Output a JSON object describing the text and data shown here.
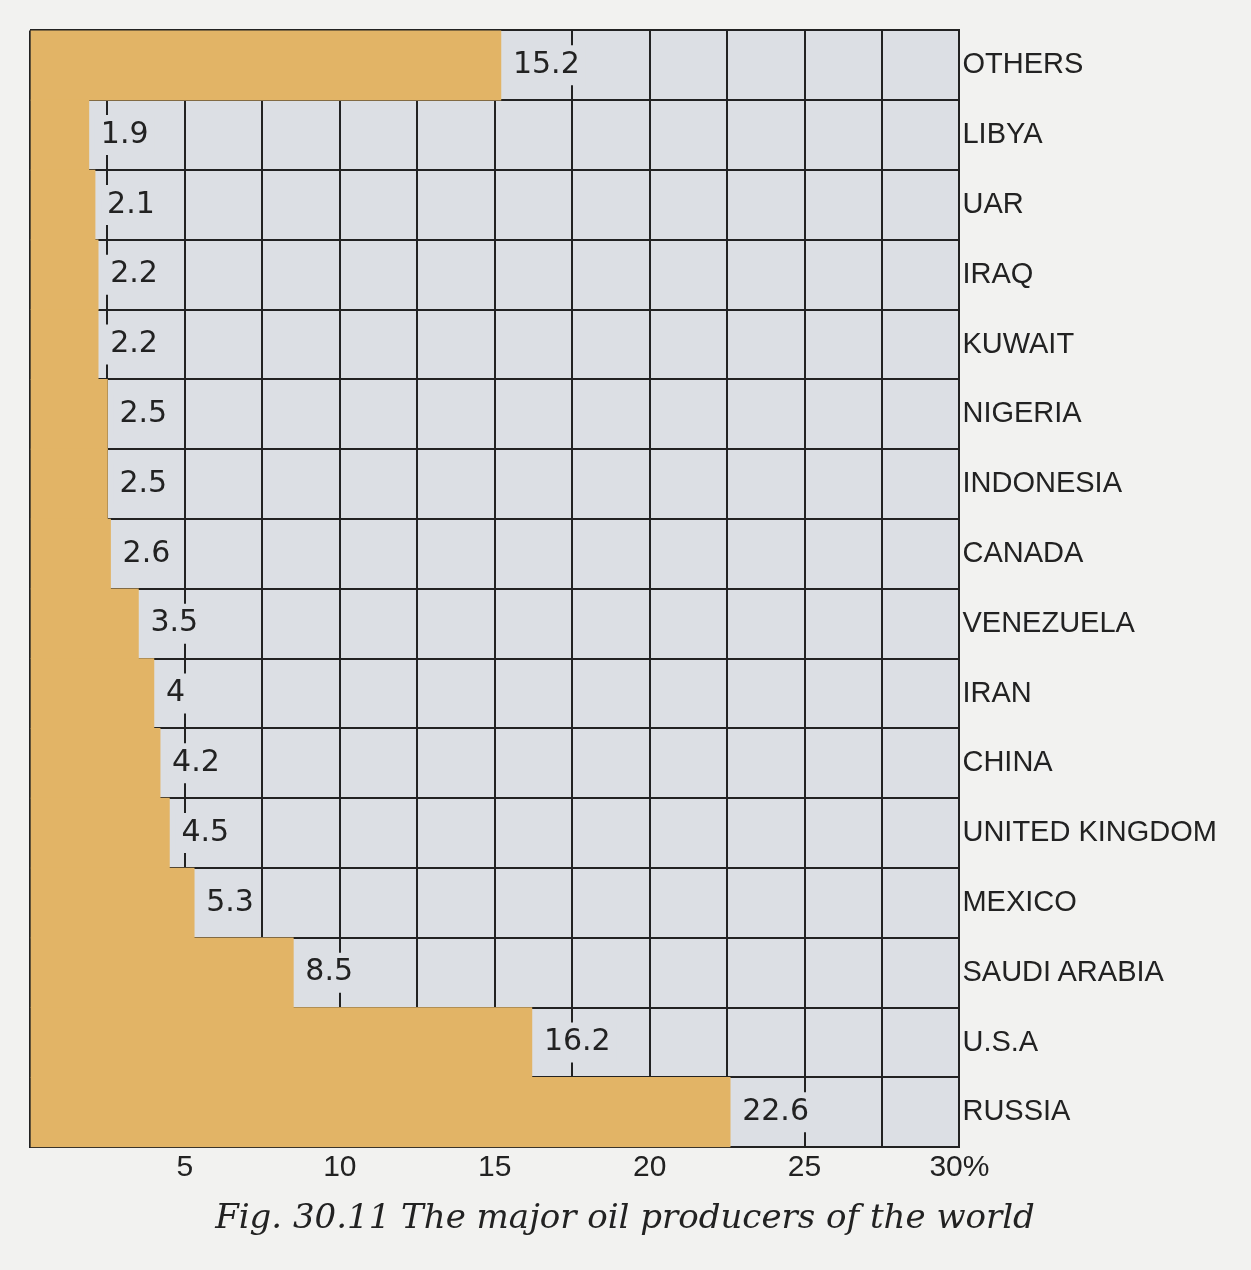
{
  "chart_data": {
    "type": "bar",
    "orientation": "horizontal",
    "title": "Fig. 30.11 The major oil producers of the world",
    "categories": [
      "OTHERS",
      "LIBYA",
      "UAR",
      "IRAQ",
      "KUWAIT",
      "NIGERIA",
      "INDONESIA",
      "CANADA",
      "VENEZUELA",
      "IRAN",
      "CHINA",
      "UNITED KINGDOM",
      "MEXICO",
      "SAUDI ARABIA",
      "U.S.A",
      "RUSSIA"
    ],
    "values": [
      15.2,
      1.9,
      2.1,
      2.2,
      2.2,
      2.5,
      2.5,
      2.6,
      3.5,
      4,
      4.2,
      4.5,
      5.3,
      8.5,
      16.2,
      22.6
    ],
    "color": "#e2b466",
    "xlim": [
      0,
      30
    ],
    "xticks": [
      {
        "value": 0,
        "label": null
      },
      {
        "value": 2.5,
        "label": null
      },
      5,
      {
        "value": 7.5,
        "label": null
      },
      10,
      {
        "value": 12.5,
        "label": null
      },
      15,
      {
        "value": 17.5,
        "label": null
      },
      20,
      {
        "value": 22.5,
        "label": null
      },
      25,
      {
        "value": 27.5,
        "label": null
      },
      {
        "value": 30,
        "label": "30%"
      }
    ],
    "grid": true,
    "data_labels": true,
    "legend": false
  }
}
